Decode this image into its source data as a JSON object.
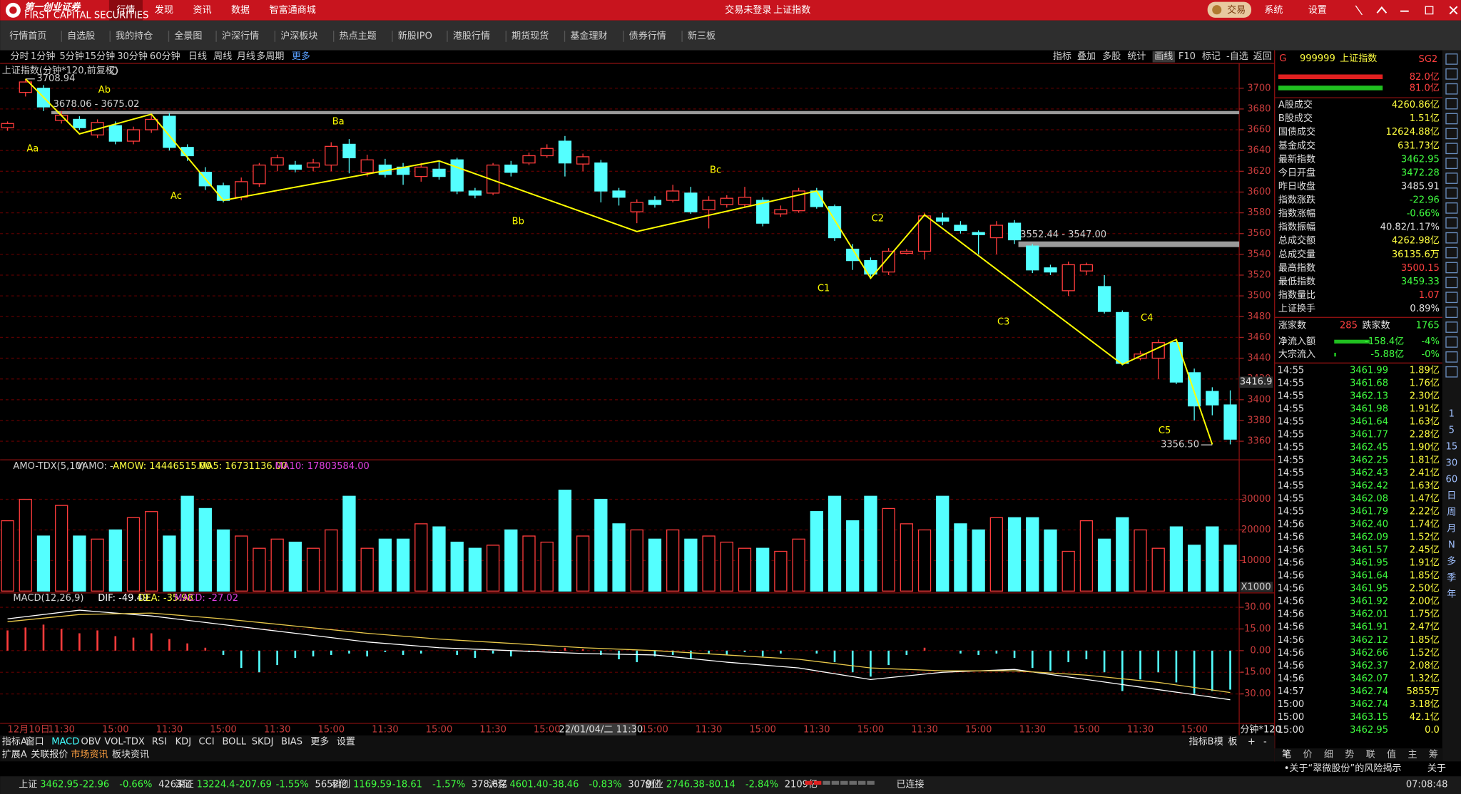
{
  "top_bar": {
    "logo": "第一创业证券",
    "logo_sub": "FIRST CAPITAL SECURITIES",
    "menu": [
      "行情",
      "发现",
      "资讯",
      "数据",
      "智富通商城"
    ],
    "status": "交易未登录",
    "current": "上证指数",
    "trade_button": "交易",
    "system": "系统",
    "settings": "设置"
  },
  "nav_tabs": [
    "行情首页",
    "自选股",
    "我的持仓",
    "全景图",
    "沪深行情",
    "沪深板块",
    "热点主题",
    "新股IPO",
    "港股行情",
    "期货现货",
    "基金理财",
    "债券行情",
    "新三板"
  ],
  "period_bar": {
    "periods": [
      "分时",
      "1分钟",
      "5分钟",
      "15分钟",
      "30分钟",
      "60分钟",
      "日线",
      "周线",
      "月线",
      "多周期",
      "更多"
    ],
    "tools": [
      "指标",
      "叠加",
      "多股",
      "统计",
      "画线",
      "F10",
      "标记",
      "-自选",
      "返回"
    ]
  },
  "chart_data": [
    {
      "type": "candlestick",
      "title": "上证指数(分钟*120,前复权)",
      "up_color": "#ff3c3c",
      "down_color": "#54ffff",
      "categories": [
        "12月10日",
        null,
        null,
        "11:30",
        null,
        null,
        "15:00",
        null,
        null,
        "11:30",
        null,
        null,
        "15:00",
        null,
        null,
        "11:30",
        null,
        null,
        "15:00",
        null,
        null,
        "11:30",
        null,
        null,
        "15:00",
        null,
        null,
        "11:30",
        null,
        null,
        "15:00",
        null,
        null,
        null,
        null,
        null,
        "15:00",
        null,
        null,
        "11:30",
        null,
        null,
        "15:00",
        null,
        null,
        "11:30",
        null,
        null,
        "15:00",
        null,
        null,
        "11:30",
        null,
        null,
        "15:00",
        null,
        null,
        "11:30",
        null,
        null,
        "15:00",
        null,
        null,
        "11:30",
        null,
        null,
        "15:00",
        null,
        null
      ],
      "crosshair_time": "22/01/04/二 11:30",
      "open": [
        3662,
        3696,
        3700,
        3669,
        3670,
        3655,
        3664,
        3649,
        3660,
        3673,
        3643,
        3619,
        3606,
        3595,
        3608,
        3626,
        3626,
        3624,
        3626,
        3646,
        3619,
        3626,
        3624,
        3615,
        3622,
        3631,
        3601,
        3599,
        3626,
        3628,
        3635,
        3649,
        3627,
        3628,
        3601,
        3581,
        3592,
        3592,
        3599,
        3583,
        3588,
        3588,
        3592,
        3579,
        3582,
        3601,
        3586,
        3545,
        3534,
        3523,
        3541,
        3543,
        3575,
        3568,
        3561,
        3556,
        3570,
        3548,
        3527,
        3505,
        3524,
        3509,
        3484,
        3440,
        3440,
        3455,
        3426,
        3408,
        3395
      ],
      "high": [
        3668,
        3709,
        3703,
        3678,
        3673,
        3670,
        3668,
        3663,
        3675,
        3676,
        3646,
        3624,
        3609,
        3614,
        3628,
        3636,
        3630,
        3632,
        3648,
        3651,
        3636,
        3632,
        3628,
        3628,
        3630,
        3633,
        3604,
        3628,
        3630,
        3638,
        3646,
        3654,
        3637,
        3631,
        3604,
        3593,
        3596,
        3607,
        3605,
        3596,
        3597,
        3605,
        3595,
        3587,
        3604,
        3604,
        3588,
        3550,
        3537,
        3546,
        3545,
        3580,
        3580,
        3572,
        3563,
        3572,
        3573,
        3550,
        3530,
        3533,
        3532,
        3520,
        3486,
        3447,
        3458,
        3457,
        3430,
        3412,
        3409
      ],
      "low": [
        3659,
        3692,
        3678,
        3666,
        3660,
        3652,
        3646,
        3646,
        3657,
        3640,
        3630,
        3602,
        3590,
        3592,
        3605,
        3620,
        3619,
        3620,
        3620,
        3618,
        3615,
        3614,
        3607,
        3610,
        3612,
        3598,
        3594,
        3597,
        3615,
        3626,
        3633,
        3615,
        3620,
        3590,
        3587,
        3570,
        3585,
        3590,
        3579,
        3565,
        3585,
        3585,
        3567,
        3576,
        3580,
        3584,
        3553,
        3525,
        3517,
        3520,
        3540,
        3535,
        3568,
        3560,
        3540,
        3540,
        3550,
        3522,
        3520,
        3500,
        3520,
        3483,
        3433,
        3438,
        3420,
        3415,
        3380,
        3385,
        3357
      ],
      "close": [
        3666,
        3706,
        3682,
        3674,
        3662,
        3667,
        3649,
        3660,
        3670,
        3643,
        3635,
        3606,
        3592,
        3610,
        3626,
        3633,
        3622,
        3628,
        3644,
        3633,
        3631,
        3617,
        3617,
        3624,
        3615,
        3601,
        3597,
        3626,
        3619,
        3635,
        3642,
        3628,
        3634,
        3601,
        3595,
        3590,
        3588,
        3601,
        3581,
        3592,
        3594,
        3595,
        3570,
        3583,
        3601,
        3586,
        3556,
        3534,
        3521,
        3543,
        3543,
        3577,
        3572,
        3563,
        3559,
        3568,
        3554,
        3525,
        3523,
        3530,
        3530,
        3485,
        3435,
        3444,
        3455,
        3417,
        3394,
        3395,
        3362
      ],
      "ylim": [
        3343,
        3724
      ],
      "yticks": [
        3360,
        3380,
        3400,
        3420,
        3440,
        3460,
        3480,
        3500,
        3520,
        3540,
        3560,
        3580,
        3600,
        3620,
        3640,
        3660,
        3680,
        3700
      ],
      "current_price": 3416.9,
      "levels": [
        {
          "label": "3678.06 - 3675.02",
          "high": 3678.06,
          "low": 3675.02
        },
        {
          "label": "3552.44 - 3547.00",
          "high": 3552.44,
          "low": 3547.0
        }
      ],
      "extremes": [
        {
          "value": 3708.94,
          "label": "3708.94"
        },
        {
          "value": 3356.5,
          "label": "3356.50"
        }
      ],
      "zigzag": {
        "color": "#ffff00",
        "x": [
          1,
          4,
          8,
          12,
          24,
          35,
          45,
          48,
          51,
          62,
          65,
          67
        ],
        "values": [
          3709,
          3656,
          3675,
          3592,
          3630,
          3562,
          3601,
          3517,
          3578,
          3434,
          3458,
          3357
        ]
      },
      "annotations": [
        "Aa",
        "Ab",
        "Ac",
        "Ba",
        "Bb",
        "Bc",
        "C1",
        "C2",
        "C3",
        "C4",
        "C5"
      ]
    },
    {
      "type": "bar",
      "title": "AMO-TDX(5,10)",
      "legend": [
        "VAMO: -",
        "AMOW: 14446515.00",
        "MA5: 16731136.00",
        "MA10: 17803584.00"
      ],
      "values": [
        23000,
        30000,
        18000,
        28000,
        18000,
        17000,
        20000,
        24000,
        26000,
        18000,
        31000,
        27000,
        20000,
        18000,
        14000,
        17000,
        16000,
        14000,
        20000,
        31000,
        14000,
        17000,
        17000,
        22000,
        21000,
        16000,
        14000,
        15000,
        20000,
        18000,
        16000,
        33000,
        18000,
        30000,
        22000,
        20000,
        17000,
        20000,
        17000,
        18000,
        16000,
        14000,
        14000,
        13000,
        17000,
        26000,
        31000,
        23000,
        31000,
        27000,
        22000,
        20000,
        31000,
        22000,
        20000,
        24000,
        24000,
        24000,
        20000,
        13000,
        23000,
        17000,
        24000,
        20000,
        14000,
        21000,
        15000,
        21000,
        15000
      ],
      "ylim": [
        0,
        42000
      ],
      "yticks": [
        10000,
        20000,
        30000
      ],
      "unit": "X1000"
    },
    {
      "type": "macd",
      "title": "MACD(12,26,9)",
      "legend": [
        "DIF: -49.49",
        "DEA: -35.98",
        "MACD: -27.02"
      ],
      "values": [
        14,
        16,
        18,
        15,
        12,
        14,
        10,
        9,
        12,
        8,
        5,
        2,
        -3,
        -12,
        -15,
        -10,
        -5,
        -4,
        -3,
        -2,
        -4,
        -1,
        -3,
        -2,
        0,
        -3,
        -5,
        -2,
        -4,
        -1,
        0,
        2,
        1,
        -3,
        -6,
        -8,
        -4,
        -3,
        -6,
        -2,
        -3,
        -1,
        -4,
        -2,
        0,
        -2,
        -8,
        -15,
        -18,
        -10,
        -3,
        2,
        0,
        -2,
        -3,
        -2,
        -5,
        -12,
        -14,
        -8,
        -6,
        -15,
        -28,
        -20,
        -15,
        -22,
        -30,
        -28,
        -27
      ],
      "series": [
        {
          "color": "#ffffff",
          "x": [
            0,
            4,
            8,
            12,
            16,
            20,
            24,
            28,
            32,
            36,
            40,
            44,
            48,
            52,
            56,
            60,
            64,
            68
          ],
          "values": [
            22,
            28,
            24,
            18,
            12,
            6,
            2,
            0,
            -2,
            -3,
            -8,
            -12,
            -20,
            -15,
            -13,
            -20,
            -27,
            -34
          ]
        },
        {
          "color": "#e8c84a",
          "x": [
            0,
            4,
            8,
            12,
            16,
            20,
            24,
            28,
            32,
            36,
            40,
            44,
            48,
            52,
            56,
            60,
            64,
            68
          ],
          "values": [
            20,
            25,
            26,
            22,
            17,
            12,
            8,
            5,
            2,
            0,
            -3,
            -6,
            -12,
            -14,
            -14,
            -17,
            -22,
            -29
          ]
        }
      ],
      "ylim": [
        -49,
        38
      ],
      "yticks": [
        {
          "value": 30,
          "label": "30.00"
        },
        {
          "value": 15,
          "label": "15.00"
        },
        {
          "value": 0,
          "label": "0.00"
        },
        {
          "value": -15,
          "label": "-15.00"
        },
        {
          "value": -30,
          "label": "-30.00"
        }
      ]
    }
  ],
  "quote_panel": {
    "flag": "G",
    "code": "999999",
    "name": "上证指数",
    "tag": "SG2",
    "bars": [
      "82.0亿",
      "81.0亿"
    ],
    "rows": [
      {
        "label": "A股成交",
        "value": "4260.86亿",
        "color": "#ffff40"
      },
      {
        "label": "B股成交",
        "value": "1.51亿",
        "color": "#ffff40"
      },
      {
        "label": "国债成交",
        "value": "12624.88亿",
        "color": "#ffff40"
      },
      {
        "label": "基金成交",
        "value": "631.73亿",
        "color": "#ffff40"
      },
      {
        "label": "最新指数",
        "value": "3462.95",
        "color": "#40ff40"
      },
      {
        "label": "今日开盘",
        "value": "3472.28",
        "color": "#40ff40"
      },
      {
        "label": "昨日收盘",
        "value": "3485.91",
        "color": "#e0e0e0"
      },
      {
        "label": "指数涨跌",
        "value": "-22.96",
        "color": "#40ff40"
      },
      {
        "label": "指数涨幅",
        "value": "-0.66%",
        "color": "#40ff40"
      },
      {
        "label": "指数振幅",
        "value": "40.82/1.17%",
        "color": "#e0e0e0"
      },
      {
        "label": "总成交额",
        "value": "4262.98亿",
        "color": "#ffff40"
      },
      {
        "label": "总成交量",
        "value": "36135.6万",
        "color": "#ffff40"
      },
      {
        "label": "最高指数",
        "value": "3500.15",
        "color": "#ff4040"
      },
      {
        "label": "最低指数",
        "value": "3459.33",
        "color": "#40ff40"
      },
      {
        "label": "指数量比",
        "value": "1.07",
        "color": "#ff4040"
      },
      {
        "label": "上证换手",
        "value": "0.89%",
        "color": "#e0e0e0"
      }
    ],
    "breadth": {
      "up_label": "涨家数",
      "up": "285",
      "down_label": "跌家数",
      "down": "1765"
    },
    "flows": [
      {
        "label": "净流入额",
        "value": "-158.4亿",
        "pct": "-4%"
      },
      {
        "label": "大宗流入",
        "value": "-5.88亿",
        "pct": "-0%"
      }
    ],
    "ticks": [
      [
        "14:55",
        "3461.99",
        "1.89亿"
      ],
      [
        "14:55",
        "3461.68",
        "1.76亿"
      ],
      [
        "14:55",
        "3462.13",
        "2.30亿"
      ],
      [
        "14:55",
        "3461.98",
        "1.91亿"
      ],
      [
        "14:55",
        "3461.64",
        "1.63亿"
      ],
      [
        "14:55",
        "3461.77",
        "2.28亿"
      ],
      [
        "14:55",
        "3462.45",
        "1.90亿"
      ],
      [
        "14:55",
        "3462.25",
        "1.81亿"
      ],
      [
        "14:55",
        "3462.43",
        "2.41亿"
      ],
      [
        "14:55",
        "3462.42",
        "1.63亿"
      ],
      [
        "14:55",
        "3462.08",
        "1.47亿"
      ],
      [
        "14:55",
        "3461.79",
        "2.22亿"
      ],
      [
        "14:56",
        "3462.40",
        "1.74亿"
      ],
      [
        "14:56",
        "3462.09",
        "1.52亿"
      ],
      [
        "14:56",
        "3461.57",
        "2.45亿"
      ],
      [
        "14:56",
        "3461.95",
        "1.91亿"
      ],
      [
        "14:56",
        "3461.64",
        "1.85亿"
      ],
      [
        "14:56",
        "3461.95",
        "2.50亿"
      ],
      [
        "14:56",
        "3461.92",
        "2.00亿"
      ],
      [
        "14:56",
        "3462.01",
        "1.75亿"
      ],
      [
        "14:56",
        "3461.91",
        "2.47亿"
      ],
      [
        "14:56",
        "3462.12",
        "1.85亿"
      ],
      [
        "14:56",
        "3462.66",
        "1.52亿"
      ],
      [
        "14:56",
        "3462.37",
        "2.08亿"
      ],
      [
        "14:56",
        "3462.07",
        "1.32亿"
      ],
      [
        "14:57",
        "3462.74",
        "5855万"
      ],
      [
        "15:00",
        "3462.74",
        "3.18亿"
      ],
      [
        "15:00",
        "3463.15",
        "42.1亿"
      ],
      [
        "15:00",
        "3462.95",
        "0.0"
      ]
    ],
    "tabs": [
      "笔",
      "价",
      "细",
      "势",
      "联",
      "值",
      "主",
      "筹"
    ],
    "news": "•关于“翠微股份”的风险揭示",
    "news_more": "关于"
  },
  "sidebar": [
    "1",
    "5",
    "15",
    "30",
    "60",
    "日",
    "周",
    "月",
    "N",
    "多",
    "季",
    "年"
  ],
  "bottom_tabs": {
    "indicators": [
      "指标A",
      "窗口",
      "MACD",
      "OBV",
      "VOL-TDX",
      "RSI",
      "KDJ",
      "CCI",
      "BOLL",
      "SKDJ",
      "BIAS",
      "更多",
      "设置"
    ],
    "right": [
      "指标B",
      "模",
      "板",
      "+",
      "-"
    ],
    "period_tag": "分钟*120",
    "extra": [
      "扩展A",
      "关联报价",
      "市场资讯",
      "板块资讯"
    ]
  },
  "status_bar": {
    "indices": [
      [
        "上证",
        "3462.95",
        "-22.96",
        "-0.66%",
        "4263亿"
      ],
      [
        "深证",
        "13224.4",
        "-207.69",
        "-1.55%",
        "5652亿"
      ],
      [
        "科创",
        "1169.59",
        "-18.61",
        "-1.57%",
        "378.6亿"
      ],
      [
        "沪深",
        "4601.40",
        "-38.46",
        "-0.83%",
        "3079亿"
      ],
      [
        "创业",
        "2746.38",
        "-80.14",
        "-2.84%",
        "2109亿"
      ]
    ],
    "connection": "已连接",
    "time": "07:08:48"
  }
}
